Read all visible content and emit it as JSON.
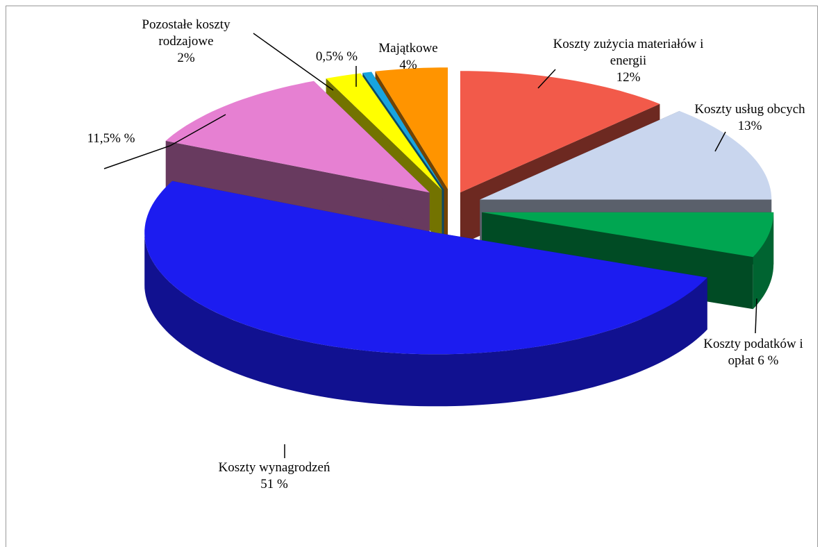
{
  "chart_data": {
    "type": "pie",
    "categories": [
      "Koszty zużycia materiałów i energii",
      "Koszty usług obcych",
      "Koszty podatków i opłat",
      "Koszty wynagrodzeń",
      null,
      "Pozostałe koszty rodzajowe",
      null,
      "Majątkowe"
    ],
    "values": [
      12,
      13,
      6,
      51,
      11.5,
      2,
      0.5,
      4
    ],
    "value_labels": [
      "12%",
      "13%",
      "6 %",
      "51 %",
      "11,5% %",
      "2%",
      "0,5% %",
      "4%"
    ],
    "colors": [
      "#f25a4a",
      "#c9d6ee",
      "#00a651",
      "#1c1cf0",
      "#e680d2",
      "#ffff00",
      "#18a4de",
      "#ff9400"
    ]
  }
}
